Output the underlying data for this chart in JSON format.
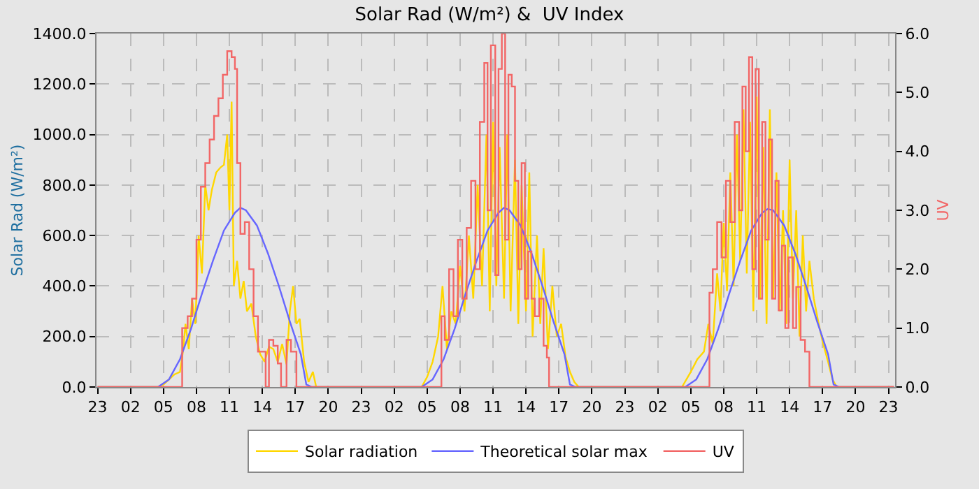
{
  "chart_data": {
    "type": "line",
    "title": "Solar Rad (W/m²) &  UV Index",
    "ylabel": "Solar Rad (W/m²)",
    "y2label": "UV",
    "xlim": [
      "--01-01T22:54",
      "--01-04T23:36"
    ],
    "xticks": [
      {
        "value": "--01-01T23:00",
        "label": "23"
      },
      {
        "value": "--01-02T02:00",
        "label": "02"
      },
      {
        "value": "--01-02T05:00",
        "label": "05"
      },
      {
        "value": "--01-02T08:00",
        "label": "08"
      },
      {
        "value": "--01-02T11:00",
        "label": "11"
      },
      {
        "value": "--01-02T14:00",
        "label": "14"
      },
      {
        "value": "--01-02T17:00",
        "label": "17"
      },
      {
        "value": "--01-02T20:00",
        "label": "20"
      },
      {
        "value": "--01-02T23:00",
        "label": "23"
      },
      {
        "value": "--01-03T02:00",
        "label": "02"
      },
      {
        "value": "--01-03T05:00",
        "label": "05"
      },
      {
        "value": "--01-03T08:00",
        "label": "08"
      },
      {
        "value": "--01-03T11:00",
        "label": "11"
      },
      {
        "value": "--01-03T14:00",
        "label": "14"
      },
      {
        "value": "--01-03T17:00",
        "label": "17"
      },
      {
        "value": "--01-03T20:00",
        "label": "20"
      },
      {
        "value": "--01-03T23:00",
        "label": "23"
      },
      {
        "value": "--01-04T02:00",
        "label": "02"
      },
      {
        "value": "--01-04T05:00",
        "label": "05"
      },
      {
        "value": "--01-04T08:00",
        "label": "08"
      },
      {
        "value": "--01-04T11:00",
        "label": "11"
      },
      {
        "value": "--01-04T14:00",
        "label": "14"
      },
      {
        "value": "--01-04T17:00",
        "label": "17"
      },
      {
        "value": "--01-04T20:00",
        "label": "20"
      },
      {
        "value": "--01-04T23:00",
        "label": "23"
      }
    ],
    "ylim": [
      0,
      1400
    ],
    "yticks": [
      {
        "value": 0,
        "label": "0.0"
      },
      {
        "value": 200,
        "label": "200.0"
      },
      {
        "value": 400,
        "label": "400.0"
      },
      {
        "value": 600,
        "label": "600.0"
      },
      {
        "value": 800,
        "label": "800.0"
      },
      {
        "value": 1000,
        "label": "1000.0"
      },
      {
        "value": 1200,
        "label": "1200.0"
      },
      {
        "value": 1400,
        "label": "1400.0"
      }
    ],
    "y2lim": [
      0,
      6
    ],
    "y2ticks": [
      {
        "value": 0,
        "label": "0.0"
      },
      {
        "value": 1,
        "label": "1.0"
      },
      {
        "value": 2,
        "label": "2.0"
      },
      {
        "value": 3,
        "label": "3.0"
      },
      {
        "value": 4,
        "label": "4.0"
      },
      {
        "value": 5,
        "label": "5.0"
      },
      {
        "value": 6,
        "label": "6.0"
      }
    ],
    "grid": true,
    "legend": "bottom",
    "line_style": "solid",
    "marker": "none",
    "series": [
      {
        "name": "Solar radiation",
        "color": "#ffd700",
        "x": [
          "--01-01T23:00",
          "--01-02T04:24",
          "--01-02T04:30",
          "--01-02T05:00",
          "--01-02T05:30",
          "--01-02T06:00",
          "--01-02T06:30",
          "--01-02T06:48",
          "--01-02T07:00",
          "--01-02T07:18",
          "--01-02T07:36",
          "--01-02T07:54",
          "--01-02T08:12",
          "--01-02T08:30",
          "--01-02T08:48",
          "--01-02T09:06",
          "--01-02T09:24",
          "--01-02T09:48",
          "--01-02T10:12",
          "--01-02T10:30",
          "--01-02T10:48",
          "--01-02T11:00",
          "--01-02T11:12",
          "--01-02T11:24",
          "--01-02T11:42",
          "--01-02T12:00",
          "--01-02T12:18",
          "--01-02T12:36",
          "--01-02T13:00",
          "--01-02T13:24",
          "--01-02T13:48",
          "--01-02T14:12",
          "--01-02T14:36",
          "--01-02T15:00",
          "--01-02T15:24",
          "--01-02T15:48",
          "--01-02T16:12",
          "--01-02T16:30",
          "--01-02T16:48",
          "--01-02T17:06",
          "--01-02T17:24",
          "--01-02T17:48",
          "--01-02T18:12",
          "--01-02T18:36",
          "--01-02T18:54",
          "--01-03T04:12",
          "--01-03T04:30",
          "--01-03T05:00",
          "--01-03T05:30",
          "--01-03T06:00",
          "--01-03T06:24",
          "--01-03T06:48",
          "--01-03T07:12",
          "--01-03T07:36",
          "--01-03T08:00",
          "--01-03T08:24",
          "--01-03T08:48",
          "--01-03T09:12",
          "--01-03T09:36",
          "--01-03T10:00",
          "--01-03T10:24",
          "--01-03T10:42",
          "--01-03T11:00",
          "--01-03T11:18",
          "--01-03T11:36",
          "--01-03T12:00",
          "--01-03T12:18",
          "--01-03T12:36",
          "--01-03T13:00",
          "--01-03T13:18",
          "--01-03T13:36",
          "--01-03T14:00",
          "--01-03T14:18",
          "--01-03T14:36",
          "--01-03T15:00",
          "--01-03T15:18",
          "--01-03T15:36",
          "--01-03T16:00",
          "--01-03T16:24",
          "--01-03T16:48",
          "--01-03T17:12",
          "--01-03T17:36",
          "--01-03T18:00",
          "--01-03T18:24",
          "--01-03T18:48",
          "--01-04T04:12",
          "--01-04T05:00",
          "--01-04T05:36",
          "--01-04T06:12",
          "--01-04T06:36",
          "--01-04T07:00",
          "--01-04T07:24",
          "--01-04T07:42",
          "--01-04T08:00",
          "--01-04T08:18",
          "--01-04T08:36",
          "--01-04T08:54",
          "--01-04T09:12",
          "--01-04T09:30",
          "--01-04T09:48",
          "--01-04T10:06",
          "--01-04T10:24",
          "--01-04T10:42",
          "--01-04T11:00",
          "--01-04T11:18",
          "--01-04T11:36",
          "--01-04T11:54",
          "--01-04T12:12",
          "--01-04T12:30",
          "--01-04T12:48",
          "--01-04T13:06",
          "--01-04T13:24",
          "--01-04T13:42",
          "--01-04T14:00",
          "--01-04T14:18",
          "--01-04T14:36",
          "--01-04T14:54",
          "--01-04T15:12",
          "--01-04T15:30",
          "--01-04T15:48",
          "--01-04T16:12",
          "--01-04T16:36",
          "--01-04T17:00",
          "--01-04T17:30",
          "--01-04T17:54",
          "--01-04T18:18",
          "--01-04T23:30"
        ],
        "values": [
          0,
          0,
          0,
          10,
          30,
          50,
          60,
          150,
          250,
          150,
          350,
          250,
          600,
          450,
          800,
          700,
          780,
          850,
          870,
          880,
          1000,
          700,
          1130,
          400,
          500,
          350,
          420,
          300,
          330,
          200,
          130,
          100,
          160,
          150,
          100,
          170,
          90,
          300,
          400,
          250,
          270,
          100,
          20,
          60,
          0,
          0,
          0,
          40,
          100,
          200,
          400,
          150,
          300,
          250,
          480,
          300,
          600,
          350,
          800,
          400,
          1000,
          300,
          1050,
          400,
          950,
          350,
          1000,
          300,
          900,
          250,
          800,
          300,
          850,
          200,
          600,
          250,
          550,
          150,
          400,
          200,
          250,
          120,
          60,
          20,
          0,
          0,
          60,
          110,
          140,
          250,
          170,
          450,
          300,
          650,
          380,
          850,
          400,
          1000,
          500,
          1100,
          450,
          1050,
          300,
          1150,
          350,
          950,
          250,
          1100,
          350,
          850,
          300,
          700,
          250,
          900,
          350,
          700,
          200,
          600,
          300,
          500,
          350,
          260,
          180,
          100,
          30,
          0,
          0
        ]
      },
      {
        "name": "Theoretical solar max",
        "color": "#6666ff",
        "x": [
          "--01-01T23:00",
          "--01-02T04:30",
          "--01-02T05:30",
          "--01-02T06:30",
          "--01-02T07:30",
          "--01-02T08:30",
          "--01-02T09:30",
          "--01-02T10:30",
          "--01-02T11:30",
          "--01-02T12:00",
          "--01-02T12:30",
          "--01-02T13:30",
          "--01-02T14:30",
          "--01-02T15:30",
          "--01-02T16:30",
          "--01-02T17:30",
          "--01-02T18:00",
          "--01-02T18:30",
          "--01-03T04:30",
          "--01-03T05:30",
          "--01-03T06:30",
          "--01-03T07:30",
          "--01-03T08:30",
          "--01-03T09:30",
          "--01-03T10:30",
          "--01-03T11:30",
          "--01-03T12:00",
          "--01-03T12:30",
          "--01-03T13:30",
          "--01-03T14:30",
          "--01-03T15:30",
          "--01-03T16:30",
          "--01-03T17:30",
          "--01-03T18:00",
          "--01-03T18:30",
          "--01-04T04:30",
          "--01-04T05:30",
          "--01-04T06:30",
          "--01-04T07:30",
          "--01-04T08:30",
          "--01-04T09:30",
          "--01-04T10:30",
          "--01-04T11:30",
          "--01-04T12:00",
          "--01-04T12:30",
          "--01-04T13:30",
          "--01-04T14:30",
          "--01-04T15:30",
          "--01-04T16:30",
          "--01-04T17:30",
          "--01-04T18:00",
          "--01-04T18:30",
          "--01-04T23:30"
        ],
        "values": [
          0,
          0,
          30,
          110,
          230,
          370,
          500,
          620,
          690,
          710,
          700,
          640,
          530,
          400,
          260,
          130,
          10,
          0,
          0,
          30,
          110,
          230,
          370,
          500,
          620,
          690,
          710,
          700,
          640,
          530,
          400,
          260,
          130,
          10,
          0,
          0,
          30,
          110,
          230,
          370,
          500,
          620,
          690,
          705,
          700,
          640,
          530,
          400,
          260,
          130,
          10,
          0,
          0
        ]
      },
      {
        "name": "UV",
        "color": "#f26666",
        "type": "step",
        "axis": "y2",
        "x": [
          "--01-01T23:00",
          "--01-02T06:36",
          "--01-02T06:42",
          "--01-02T07:12",
          "--01-02T07:36",
          "--01-02T08:00",
          "--01-02T08:24",
          "--01-02T08:48",
          "--01-02T09:12",
          "--01-02T09:36",
          "--01-02T10:00",
          "--01-02T10:24",
          "--01-02T10:48",
          "--01-02T11:12",
          "--01-02T11:30",
          "--01-02T11:42",
          "--01-02T12:00",
          "--01-02T12:24",
          "--01-02T12:48",
          "--01-02T13:12",
          "--01-02T13:36",
          "--01-02T14:00",
          "--01-02T14:18",
          "--01-02T14:36",
          "--01-02T15:00",
          "--01-02T15:24",
          "--01-02T15:42",
          "--01-02T16:12",
          "--01-02T16:36",
          "--01-02T17:06",
          "--01-03T06:12",
          "--01-03T06:18",
          "--01-03T06:36",
          "--01-03T07:00",
          "--01-03T07:24",
          "--01-03T07:48",
          "--01-03T08:12",
          "--01-03T08:36",
          "--01-03T09:00",
          "--01-03T09:24",
          "--01-03T09:48",
          "--01-03T10:12",
          "--01-03T10:30",
          "--01-03T10:48",
          "--01-03T11:12",
          "--01-03T11:30",
          "--01-03T11:48",
          "--01-03T12:06",
          "--01-03T12:24",
          "--01-03T12:42",
          "--01-03T13:00",
          "--01-03T13:18",
          "--01-03T13:36",
          "--01-03T13:54",
          "--01-03T14:12",
          "--01-03T14:30",
          "--01-03T14:48",
          "--01-03T15:12",
          "--01-03T15:36",
          "--01-03T15:54",
          "--01-03T16:06",
          "--01-04T06:36",
          "--01-04T06:42",
          "--01-04T07:00",
          "--01-04T07:24",
          "--01-04T07:48",
          "--01-04T08:12",
          "--01-04T08:36",
          "--01-04T09:00",
          "--01-04T09:24",
          "--01-04T09:42",
          "--01-04T10:00",
          "--01-04T10:18",
          "--01-04T10:36",
          "--01-04T10:54",
          "--01-04T11:12",
          "--01-04T11:30",
          "--01-04T11:48",
          "--01-04T12:06",
          "--01-04T12:24",
          "--01-04T12:42",
          "--01-04T13:00",
          "--01-04T13:18",
          "--01-04T13:36",
          "--01-04T13:54",
          "--01-04T14:18",
          "--01-04T14:36",
          "--01-04T15:00",
          "--01-04T15:24",
          "--01-04T15:48",
          "--01-04T23:30"
        ],
        "values": [
          0,
          0,
          1.0,
          1.2,
          1.5,
          2.5,
          3.4,
          3.8,
          4.2,
          4.6,
          4.9,
          5.3,
          5.7,
          5.6,
          5.4,
          3.8,
          2.6,
          2.8,
          2.0,
          1.2,
          0.6,
          0.6,
          0,
          0.8,
          0.7,
          0.4,
          0,
          0.8,
          0.6,
          0,
          0,
          1.2,
          0.8,
          2.0,
          1.2,
          2.5,
          1.5,
          2.7,
          3.5,
          2.0,
          4.5,
          5.5,
          3.0,
          5.8,
          1.9,
          5.4,
          6.0,
          2.5,
          5.3,
          5.1,
          3.5,
          2.0,
          3.8,
          1.5,
          2.3,
          1.5,
          1.2,
          1.5,
          0.7,
          0.5,
          0,
          0,
          1.6,
          2.0,
          2.8,
          2.2,
          3.5,
          2.8,
          4.5,
          3.0,
          5.1,
          4.0,
          5.6,
          2.0,
          5.4,
          1.5,
          4.5,
          2.5,
          4.2,
          1.5,
          3.5,
          1.3,
          2.4,
          1.0,
          2.2,
          1.0,
          1.7,
          0.8,
          0.6,
          0,
          0
        ]
      }
    ]
  }
}
